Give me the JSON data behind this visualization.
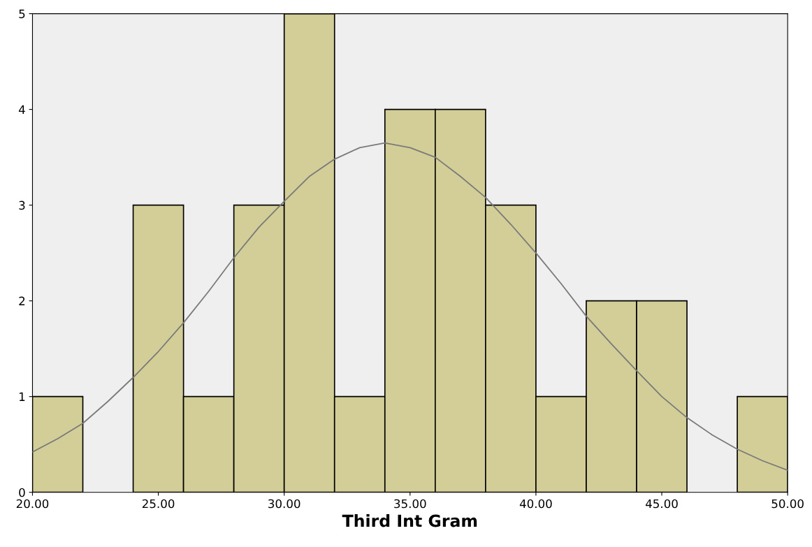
{
  "chart_data": {
    "type": "histogram",
    "xlabel": "Third Int Gram",
    "bins": [
      20,
      22,
      24,
      26,
      28,
      30,
      32,
      34,
      36,
      38,
      40,
      42,
      44,
      46,
      48,
      50
    ],
    "values": [
      1,
      0,
      3,
      1,
      3,
      5,
      1,
      4,
      4,
      3,
      1,
      2,
      2,
      0,
      1
    ],
    "color": "#d3ce97",
    "series": [
      {
        "type": "line",
        "color": "#7a7a7a",
        "x": [
          20,
          21,
          22,
          23,
          24,
          25,
          26,
          27,
          28,
          29,
          30,
          31,
          32,
          33,
          34,
          35,
          36,
          37,
          38,
          39,
          40,
          41,
          42,
          43,
          44,
          45,
          46,
          47,
          48,
          49,
          50
        ],
        "values": [
          0.42,
          0.56,
          0.72,
          0.95,
          1.2,
          1.47,
          1.77,
          2.1,
          2.45,
          2.77,
          3.04,
          3.3,
          3.48,
          3.6,
          3.65,
          3.6,
          3.5,
          3.3,
          3.08,
          2.8,
          2.5,
          2.18,
          1.84,
          1.55,
          1.27,
          1.0,
          0.78,
          0.6,
          0.45,
          0.33,
          0.23
        ]
      }
    ],
    "xlim": [
      20,
      50
    ],
    "xticks": [
      {
        "value": 20,
        "label": "20.00"
      },
      {
        "value": 25,
        "label": "25.00"
      },
      {
        "value": 30,
        "label": "30.00"
      },
      {
        "value": 35,
        "label": "35.00"
      },
      {
        "value": 40,
        "label": "40.00"
      },
      {
        "value": 45,
        "label": "45.00"
      },
      {
        "value": 50,
        "label": "50.00"
      }
    ],
    "ylim": [
      0,
      5
    ],
    "yticks": [
      0,
      1,
      2,
      3,
      4,
      5
    ],
    "grid": false
  }
}
